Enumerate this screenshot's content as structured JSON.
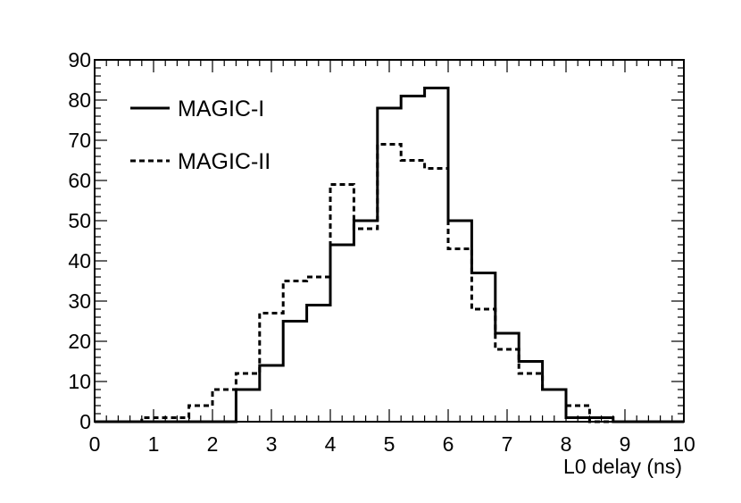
{
  "chart_data": {
    "type": "histogram",
    "title": "",
    "xlabel": "L0 delay (ns)",
    "ylabel": "",
    "xlim": [
      0,
      10
    ],
    "ylim": [
      0,
      90
    ],
    "grid": false,
    "legend_position": "top-left",
    "bin_width": 0.4,
    "bin_edges": [
      0,
      0.4,
      0.8,
      1.2,
      1.6,
      2.0,
      2.4,
      2.8,
      3.2,
      3.6,
      4.0,
      4.4,
      4.8,
      5.2,
      5.6,
      6.0,
      6.4,
      6.8,
      7.2,
      7.6,
      8.0,
      8.4,
      8.8,
      9.2,
      9.6,
      10.0
    ],
    "x_ticks": [
      "0",
      "1",
      "2",
      "3",
      "4",
      "5",
      "6",
      "7",
      "8",
      "9",
      "10"
    ],
    "y_ticks": [
      "0",
      "10",
      "20",
      "30",
      "40",
      "50",
      "60",
      "70",
      "80",
      "90"
    ],
    "series": [
      {
        "name": "MAGIC-I",
        "line_style": "solid",
        "color": "#000000",
        "values": [
          0,
          0,
          0,
          0,
          0,
          0,
          8,
          14,
          25,
          29,
          44,
          50,
          78,
          81,
          83,
          50,
          37,
          22,
          15,
          8,
          1,
          1,
          0,
          0,
          0
        ]
      },
      {
        "name": "MAGIC-II",
        "line_style": "dashed",
        "color": "#000000",
        "values": [
          0,
          0,
          1,
          1,
          4,
          8,
          12,
          27,
          35,
          36,
          59,
          48,
          69,
          65,
          63,
          43,
          28,
          18,
          12,
          8,
          4,
          0,
          0,
          0,
          0
        ]
      }
    ]
  }
}
